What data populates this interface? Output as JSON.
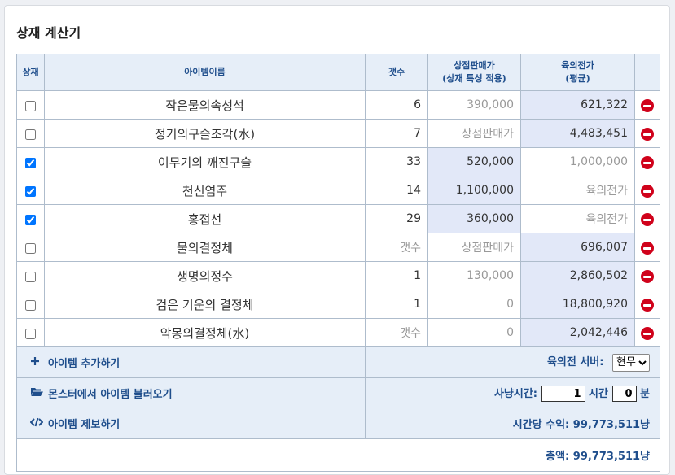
{
  "title": "상재 계산기",
  "headers": {
    "sangjae": "상재",
    "item_name": "아이템이름",
    "count": "갯수",
    "shop_price_1": "상점판매가",
    "shop_price_2": "(상재 특성 적용)",
    "bid_price_1": "육의전가",
    "bid_price_2": "(평균)"
  },
  "items": [
    {
      "checked": false,
      "name": "작은물의속성석",
      "count": "6",
      "count_muted": false,
      "shop": "390,000",
      "shop_active": false,
      "bid": "621,322",
      "bid_active": true
    },
    {
      "checked": false,
      "name": "정기의구슬조각(水)",
      "count": "7",
      "count_muted": false,
      "shop": "상점판매가",
      "shop_active": false,
      "bid": "4,483,451",
      "bid_active": true
    },
    {
      "checked": true,
      "name": "이무기의 깨진구슬",
      "count": "33",
      "count_muted": false,
      "shop": "520,000",
      "shop_active": true,
      "bid": "1,000,000",
      "bid_active": false
    },
    {
      "checked": true,
      "name": "천신염주",
      "count": "14",
      "count_muted": false,
      "shop": "1,100,000",
      "shop_active": true,
      "bid": "육의전가",
      "bid_active": false
    },
    {
      "checked": true,
      "name": "홍접선",
      "count": "29",
      "count_muted": false,
      "shop": "360,000",
      "shop_active": true,
      "bid": "육의전가",
      "bid_active": false
    },
    {
      "checked": false,
      "name": "물의결정체",
      "count": "갯수",
      "count_muted": true,
      "shop": "상점판매가",
      "shop_active": false,
      "bid": "696,007",
      "bid_active": true
    },
    {
      "checked": false,
      "name": "생명의정수",
      "count": "1",
      "count_muted": false,
      "shop": "130,000",
      "shop_active": false,
      "bid": "2,860,502",
      "bid_active": true
    },
    {
      "checked": false,
      "name": "검은 기운의 결정체",
      "count": "1",
      "count_muted": false,
      "shop": "0",
      "shop_active": false,
      "bid": "18,800,920",
      "bid_active": true
    },
    {
      "checked": false,
      "name": "악몽의결정체(水)",
      "count": "갯수",
      "count_muted": true,
      "shop": "0",
      "shop_active": false,
      "bid": "2,042,446",
      "bid_active": true
    }
  ],
  "actions": {
    "add_item": "아이템 추가하기",
    "load_monster": "몬스터에서 아이템 불러오기",
    "report_item": "아이템 제보하기"
  },
  "server": {
    "label": "육의전 서버:",
    "selected": "현무"
  },
  "hunt_time": {
    "label": "사냥시간:",
    "hours": "1",
    "hour_unit": "시간",
    "minutes": "0",
    "minute_unit": "분"
  },
  "hourly": {
    "label": "시간당 수익:",
    "value": "99,773,511냥"
  },
  "total": {
    "label": "총액:",
    "value": "99,773,511냥"
  },
  "colors": {
    "accent": "#1f4e8c",
    "header_bg": "#e6eef8",
    "active_cell": "#e2e8f8",
    "remove": "#d0021b"
  }
}
